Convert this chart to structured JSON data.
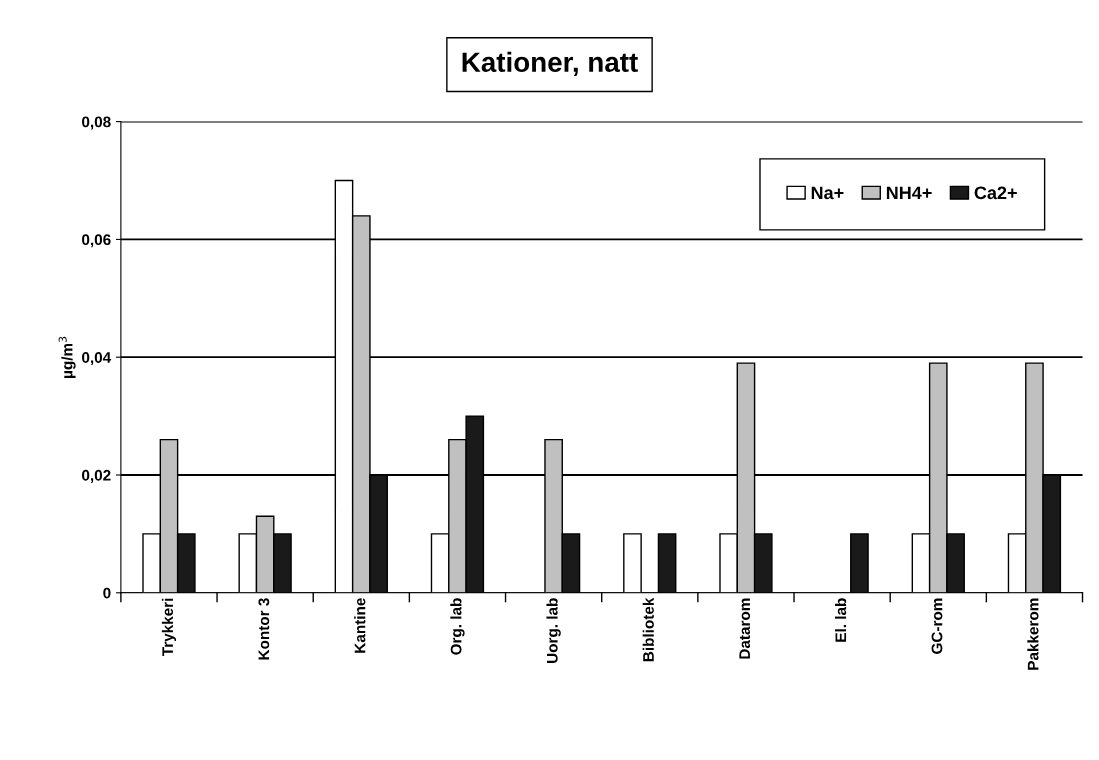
{
  "chart_data": {
    "type": "bar",
    "title": "Kationer, natt",
    "ylabel": "µg/m$^{3}$",
    "categories": [
      "Trykkeri",
      "Kontor 3",
      "Kantine",
      "Org. lab",
      "Uorg. lab",
      "Bibliotek",
      "Datarom",
      "El. lab",
      "GC-rom",
      "Pakkerom"
    ],
    "series": [
      {
        "name": "Na+",
        "color": "#ffffff",
        "values": [
          0.01,
          0.01,
          0.07,
          0.01,
          null,
          0.01,
          0.01,
          null,
          0.01,
          0.01
        ]
      },
      {
        "name": "NH4+",
        "color": "#c0c0c0",
        "values": [
          0.026,
          0.013,
          0.064,
          0.026,
          0.026,
          null,
          0.039,
          null,
          0.039,
          0.039
        ]
      },
      {
        "name": "Ca2+",
        "color": "#1a1a1a",
        "values": [
          0.01,
          0.01,
          0.02,
          0.03,
          0.01,
          0.01,
          0.01,
          0.01,
          0.01,
          0.02
        ]
      }
    ],
    "ylim": [
      0,
      0.08
    ],
    "yticks": [
      {
        "value": 0,
        "label": "0"
      },
      {
        "value": 0.02,
        "label": "0,02"
      },
      {
        "value": 0.04,
        "label": "0,04"
      },
      {
        "value": 0.06,
        "label": "0,06"
      },
      {
        "value": 0.08,
        "label": "0,08"
      }
    ],
    "grid": "y",
    "legend": "top right"
  }
}
